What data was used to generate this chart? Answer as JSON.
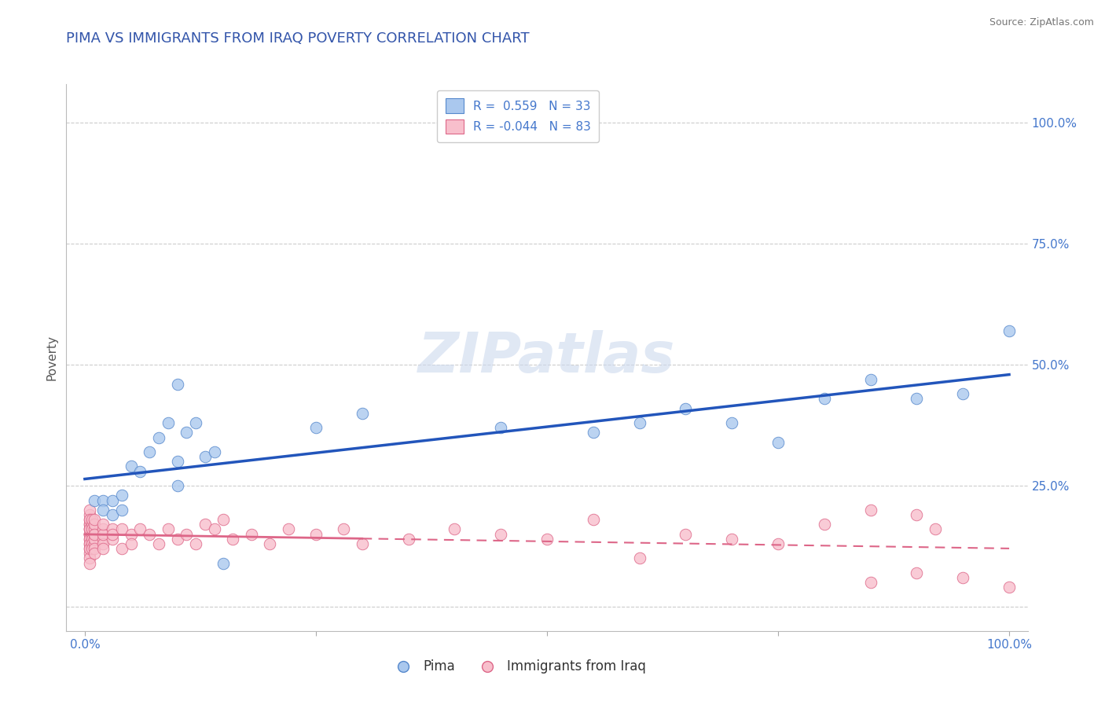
{
  "title": "PIMA VS IMMIGRANTS FROM IRAQ POVERTY CORRELATION CHART",
  "source": "Source: ZipAtlas.com",
  "ylabel": "Poverty",
  "xlabel": "",
  "xlim": [
    -0.02,
    1.02
  ],
  "ylim": [
    -0.05,
    1.08
  ],
  "xticks": [
    0.0,
    0.25,
    0.5,
    0.75,
    1.0
  ],
  "xticklabels": [
    "0.0%",
    "",
    "",
    "",
    "100.0%"
  ],
  "yticks": [
    0.0,
    0.25,
    0.5,
    0.75,
    1.0
  ],
  "yticklabels": [
    "100.0%",
    "75.0%",
    "50.0%",
    "25.0%",
    ""
  ],
  "title_color": "#3355aa",
  "title_fontsize": 13,
  "axis_label_color": "#555555",
  "tick_color": "#4477cc",
  "pima_color": "#aac8ee",
  "iraq_color": "#f8bfcc",
  "pima_edge_color": "#5588cc",
  "iraq_edge_color": "#dd6688",
  "pima_line_color": "#2255bb",
  "iraq_line_solid_color": "#dd6688",
  "iraq_line_dash_color": "#dd6688",
  "background_color": "#ffffff",
  "grid_color": "#cccccc",
  "watermark_color": "#ccd9ee",
  "pima_R": "0.559",
  "pima_N": "33",
  "iraq_R": "-0.044",
  "iraq_N": "83",
  "pima_x": [
    0.01,
    0.02,
    0.02,
    0.03,
    0.03,
    0.04,
    0.04,
    0.05,
    0.06,
    0.07,
    0.08,
    0.09,
    0.1,
    0.1,
    0.11,
    0.12,
    0.13,
    0.14,
    0.15,
    0.1,
    0.25,
    0.3,
    0.45,
    0.55,
    0.6,
    0.65,
    0.7,
    0.75,
    0.8,
    0.85,
    0.9,
    0.95,
    1.0
  ],
  "pima_y": [
    0.22,
    0.22,
    0.2,
    0.19,
    0.22,
    0.23,
    0.2,
    0.29,
    0.28,
    0.32,
    0.35,
    0.38,
    0.25,
    0.3,
    0.36,
    0.38,
    0.31,
    0.32,
    0.09,
    0.46,
    0.37,
    0.4,
    0.37,
    0.36,
    0.38,
    0.41,
    0.38,
    0.34,
    0.43,
    0.47,
    0.43,
    0.44,
    0.57
  ],
  "iraq_x": [
    0.005,
    0.005,
    0.005,
    0.005,
    0.005,
    0.005,
    0.005,
    0.005,
    0.005,
    0.005,
    0.005,
    0.005,
    0.005,
    0.005,
    0.005,
    0.005,
    0.005,
    0.005,
    0.005,
    0.005,
    0.008,
    0.008,
    0.008,
    0.008,
    0.008,
    0.008,
    0.008,
    0.01,
    0.01,
    0.01,
    0.01,
    0.01,
    0.01,
    0.01,
    0.01,
    0.01,
    0.02,
    0.02,
    0.02,
    0.02,
    0.02,
    0.02,
    0.03,
    0.03,
    0.03,
    0.04,
    0.04,
    0.05,
    0.05,
    0.06,
    0.07,
    0.08,
    0.09,
    0.1,
    0.11,
    0.12,
    0.13,
    0.14,
    0.15,
    0.16,
    0.18,
    0.2,
    0.22,
    0.25,
    0.28,
    0.3,
    0.35,
    0.4,
    0.45,
    0.5,
    0.55,
    0.6,
    0.65,
    0.7,
    0.75,
    0.8,
    0.85,
    0.9,
    0.95,
    1.0,
    0.85,
    0.9,
    0.92
  ],
  "iraq_y": [
    0.15,
    0.14,
    0.16,
    0.13,
    0.17,
    0.12,
    0.18,
    0.11,
    0.19,
    0.1,
    0.2,
    0.09,
    0.16,
    0.15,
    0.14,
    0.13,
    0.17,
    0.18,
    0.12,
    0.16,
    0.15,
    0.14,
    0.13,
    0.17,
    0.16,
    0.12,
    0.18,
    0.15,
    0.13,
    0.16,
    0.14,
    0.17,
    0.12,
    0.18,
    0.11,
    0.15,
    0.14,
    0.16,
    0.13,
    0.15,
    0.17,
    0.12,
    0.16,
    0.14,
    0.15,
    0.16,
    0.12,
    0.15,
    0.13,
    0.16,
    0.15,
    0.13,
    0.16,
    0.14,
    0.15,
    0.13,
    0.17,
    0.16,
    0.18,
    0.14,
    0.15,
    0.13,
    0.16,
    0.15,
    0.16,
    0.13,
    0.14,
    0.16,
    0.15,
    0.14,
    0.18,
    0.1,
    0.15,
    0.14,
    0.13,
    0.17,
    0.05,
    0.07,
    0.06,
    0.04,
    0.2,
    0.19,
    0.16
  ]
}
